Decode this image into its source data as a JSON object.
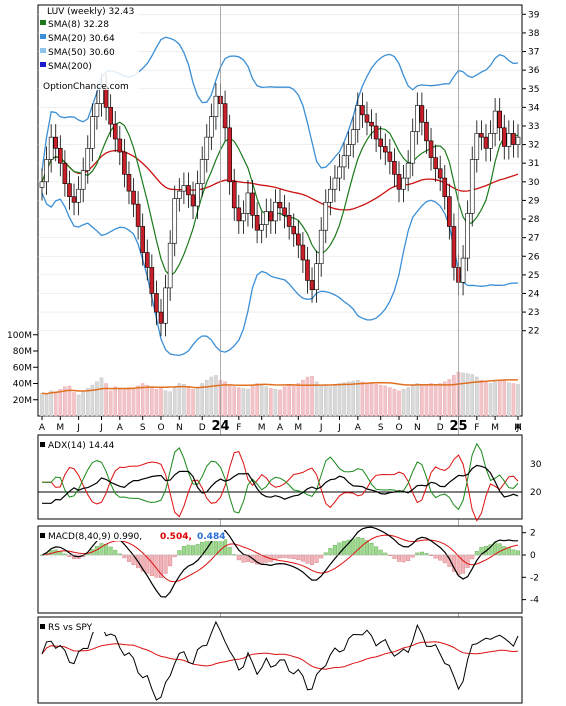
{
  "chart_data": {
    "type": "line",
    "ticker_label": "LUV (weekly) 32.43",
    "watermark": "OptionChance.com",
    "legend": [
      {
        "label": "SMA(8) 32.28",
        "color": "#1a7a1a"
      },
      {
        "label": "SMA(20) 30.64",
        "color": "#3b8fd6"
      },
      {
        "label": "SMA(50) 30.60",
        "color": "#8cc4ee"
      },
      {
        "label": "SMA(200)",
        "color": "#1a1acc"
      }
    ],
    "price_axis": {
      "min": 21.5,
      "max": 39.5,
      "ticks": [
        22,
        23,
        24,
        25,
        26,
        27,
        28,
        29,
        30,
        31,
        32,
        33,
        34,
        35,
        36,
        37,
        38,
        39
      ]
    },
    "x_axis_labels": [
      {
        "text": "A",
        "week": 0
      },
      {
        "text": "M",
        "week": 4
      },
      {
        "text": "J",
        "week": 8
      },
      {
        "text": "J",
        "week": 13
      },
      {
        "text": "A",
        "week": 17
      },
      {
        "text": "S",
        "week": 22
      },
      {
        "text": "O",
        "week": 26
      },
      {
        "text": "N",
        "week": 30
      },
      {
        "text": "D",
        "week": 35
      },
      {
        "text": "24",
        "week": 39,
        "bold": true
      },
      {
        "text": "F",
        "week": 43
      },
      {
        "text": "M",
        "week": 48
      },
      {
        "text": "A",
        "week": 52
      },
      {
        "text": "M",
        "week": 56
      },
      {
        "text": "J",
        "week": 61
      },
      {
        "text": "J",
        "week": 65
      },
      {
        "text": "A",
        "week": 69
      },
      {
        "text": "S",
        "week": 74
      },
      {
        "text": "O",
        "week": 78
      },
      {
        "text": "N",
        "week": 82
      },
      {
        "text": "D",
        "week": 87
      },
      {
        "text": "25",
        "week": 91,
        "bold": true
      },
      {
        "text": "F",
        "week": 95
      },
      {
        "text": "M",
        "week": 99
      },
      {
        "text": "A",
        "week": 104
      },
      {
        "text": "M",
        "week": 108
      },
      {
        "text": "J",
        "week": 112
      }
    ],
    "close": [
      30.0,
      31.2,
      32.4,
      31.8,
      31.0,
      29.9,
      29.2,
      28.9,
      29.6,
      30.6,
      31.8,
      33.5,
      34.2,
      35.1,
      34.0,
      33.1,
      32.3,
      31.6,
      30.4,
      29.5,
      28.8,
      27.6,
      26.2,
      25.4,
      24.0,
      23.0,
      22.4,
      24.3,
      26.7,
      29.1,
      29.5,
      29.8,
      29.3,
      28.7,
      29.9,
      31.2,
      32.4,
      33.5,
      34.6,
      34.2,
      32.9,
      30.0,
      28.6,
      27.9,
      28.3,
      29.4,
      28.2,
      27.4,
      27.7,
      28.4,
      27.9,
      28.9,
      28.6,
      28.2,
      27.6,
      27.2,
      26.6,
      25.8,
      24.7,
      24.2,
      25.6,
      27.4,
      28.9,
      29.6,
      30.2,
      30.8,
      31.4,
      32.0,
      32.8,
      34.1,
      33.6,
      33.2,
      33.0,
      32.3,
      31.9,
      31.6,
      31.1,
      30.4,
      29.6,
      30.2,
      31.0,
      32.7,
      34.1,
      33.2,
      32.2,
      31.3,
      30.7,
      30.2,
      29.2,
      27.6,
      25.4,
      24.6,
      25.9,
      28.3,
      31.2,
      32.6,
      32.4,
      31.8,
      32.6,
      33.8,
      32.9,
      31.9,
      32.6,
      32.0,
      32.4
    ],
    "volume_millions": [
      28,
      27,
      31,
      30,
      33,
      36,
      37,
      29,
      26,
      31,
      34,
      38,
      42,
      47,
      40,
      31,
      36,
      33,
      34,
      35,
      33,
      37,
      40,
      38,
      36,
      33,
      34,
      31,
      30,
      35,
      40,
      39,
      36,
      33,
      35,
      40,
      44,
      48,
      50,
      44,
      42,
      37,
      36,
      35,
      34,
      33,
      38,
      40,
      38,
      36,
      34,
      33,
      32,
      36,
      38,
      37,
      40,
      44,
      48,
      49,
      42,
      38,
      37,
      36,
      38,
      40,
      41,
      42,
      43,
      44,
      42,
      41,
      40,
      39,
      38,
      37,
      35,
      33,
      31,
      33,
      35,
      38,
      40,
      39,
      39,
      40,
      39,
      40,
      42,
      45,
      50,
      54,
      53,
      52,
      51,
      48,
      44,
      42,
      40,
      42,
      44,
      43,
      41,
      40,
      39
    ],
    "volume_axis": {
      "min": 0,
      "max": 112,
      "ticks": [
        {
          "v": 20,
          "label": "20M"
        },
        {
          "v": 40,
          "label": "40M"
        },
        {
          "v": 60,
          "label": "60M"
        },
        {
          "v": 80,
          "label": "80M"
        },
        {
          "v": 100,
          "label": "100M"
        }
      ]
    },
    "adx": {
      "label": "ADX(14) 14.44",
      "ticks": [
        20,
        30
      ],
      "range": [
        8,
        40
      ]
    },
    "macd": {
      "label_main": "MACD(8,40,9) 0.990,",
      "label_signal": "0.504,",
      "label_hist": "0.484",
      "signal_color": "#dd0000",
      "hist_color": "#2a6fd6",
      "ticks": [
        2,
        0,
        -2,
        -4
      ],
      "range": [
        -5.2,
        2.6
      ]
    },
    "rs": {
      "label": "RS vs SPY"
    }
  }
}
